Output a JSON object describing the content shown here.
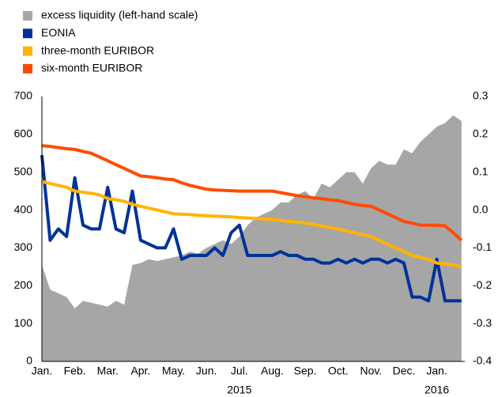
{
  "chart_data": {
    "type": "area_line",
    "x": [
      0,
      0.25,
      0.5,
      0.75,
      1,
      1.25,
      1.5,
      1.75,
      2,
      2.25,
      2.5,
      2.75,
      3,
      3.25,
      3.5,
      3.75,
      4,
      4.25,
      4.5,
      4.75,
      5,
      5.25,
      5.5,
      5.75,
      6,
      6.25,
      6.5,
      6.75,
      7,
      7.25,
      7.5,
      7.75,
      8,
      8.25,
      8.5,
      8.75,
      9,
      9.25,
      9.5,
      9.75,
      10,
      10.25,
      10.5,
      10.75,
      11,
      11.25,
      11.5,
      11.75,
      12,
      12.25,
      12.5,
      12.75
    ],
    "xlim": [
      0,
      12.85
    ],
    "xticks": [
      {
        "value": 0,
        "label": "Jan."
      },
      {
        "value": 1,
        "label": "Feb."
      },
      {
        "value": 2,
        "label": "Mar."
      },
      {
        "value": 3,
        "label": "Apr."
      },
      {
        "value": 4,
        "label": "May."
      },
      {
        "value": 5,
        "label": "Jun."
      },
      {
        "value": 6,
        "label": "Jul."
      },
      {
        "value": 7,
        "label": "Aug."
      },
      {
        "value": 8,
        "label": "Sep."
      },
      {
        "value": 9,
        "label": "Oct."
      },
      {
        "value": 10,
        "label": "Nov."
      },
      {
        "value": 11,
        "label": "Dec."
      },
      {
        "value": 12,
        "label": "Jan."
      }
    ],
    "year_labels": [
      {
        "value": 6,
        "label": "2015"
      },
      {
        "value": 12,
        "label": "2016"
      }
    ],
    "ylim": [
      0,
      700
    ],
    "yticks": [
      0,
      100,
      200,
      300,
      400,
      500,
      600,
      700
    ],
    "y2lim": [
      -0.4,
      0.3
    ],
    "y2ticks": [
      -0.4,
      -0.3,
      -0.2,
      -0.1,
      {
        "value": 0,
        "label": "0.0"
      },
      0.1,
      0.2,
      0.3
    ],
    "grid": false,
    "series": [
      {
        "name": "excess liquidity (left-hand scale)",
        "color": "#a6a6a6",
        "kind": "area",
        "values": [
          255,
          190,
          180,
          170,
          140,
          160,
          155,
          150,
          145,
          160,
          150,
          255,
          260,
          270,
          265,
          270,
          275,
          280,
          290,
          285,
          300,
          310,
          320,
          310,
          330,
          360,
          380,
          390,
          400,
          420,
          420,
          440,
          450,
          430,
          470,
          460,
          480,
          500,
          500,
          470,
          510,
          530,
          520,
          520,
          560,
          550,
          580,
          600,
          620,
          630,
          650,
          635
        ]
      },
      {
        "name": "EONIA",
        "color": "#003299",
        "kind": "line",
        "axis": "y2",
        "values": [
          0.145,
          -0.08,
          -0.05,
          -0.07,
          0.085,
          -0.04,
          -0.05,
          -0.05,
          0.06,
          -0.05,
          -0.06,
          0.05,
          -0.08,
          -0.09,
          -0.1,
          -0.1,
          -0.05,
          -0.13,
          -0.12,
          -0.12,
          -0.12,
          -0.1,
          -0.12,
          -0.06,
          -0.04,
          -0.12,
          -0.12,
          -0.12,
          -0.12,
          -0.11,
          -0.12,
          -0.12,
          -0.13,
          -0.13,
          -0.14,
          -0.14,
          -0.13,
          -0.14,
          -0.13,
          -0.14,
          -0.13,
          -0.13,
          -0.14,
          -0.13,
          -0.14,
          -0.23,
          -0.23,
          -0.24,
          -0.13,
          -0.24,
          -0.24,
          -0.24
        ]
      },
      {
        "name": "three-month EURIBOR",
        "color": "#ffb400",
        "kind": "line",
        "axis": "y2",
        "values": [
          0.075,
          0.07,
          0.065,
          0.06,
          0.05,
          0.047,
          0.044,
          0.04,
          0.03,
          0.027,
          0.023,
          0.015,
          0.01,
          0.005,
          0.0,
          -0.005,
          -0.01,
          -0.011,
          -0.012,
          -0.014,
          -0.015,
          -0.016,
          -0.017,
          -0.018,
          -0.02,
          -0.021,
          -0.022,
          -0.024,
          -0.025,
          -0.027,
          -0.03,
          -0.032,
          -0.035,
          -0.038,
          -0.042,
          -0.046,
          -0.05,
          -0.055,
          -0.06,
          -0.065,
          -0.07,
          -0.08,
          -0.09,
          -0.1,
          -0.11,
          -0.12,
          -0.125,
          -0.13,
          -0.14,
          -0.142,
          -0.145,
          -0.15
        ]
      },
      {
        "name": "six-month EURIBOR",
        "color": "#ff4b00",
        "kind": "line",
        "axis": "y2",
        "values": [
          0.17,
          0.168,
          0.165,
          0.162,
          0.16,
          0.155,
          0.15,
          0.14,
          0.13,
          0.12,
          0.11,
          0.1,
          0.09,
          0.088,
          0.085,
          0.082,
          0.08,
          0.072,
          0.065,
          0.06,
          0.055,
          0.053,
          0.052,
          0.051,
          0.05,
          0.05,
          0.05,
          0.05,
          0.05,
          0.046,
          0.042,
          0.038,
          0.035,
          0.032,
          0.03,
          0.027,
          0.025,
          0.02,
          0.015,
          0.012,
          0.01,
          0.0,
          -0.01,
          -0.02,
          -0.03,
          -0.035,
          -0.04,
          -0.04,
          -0.04,
          -0.042,
          -0.06,
          -0.08
        ]
      }
    ]
  }
}
